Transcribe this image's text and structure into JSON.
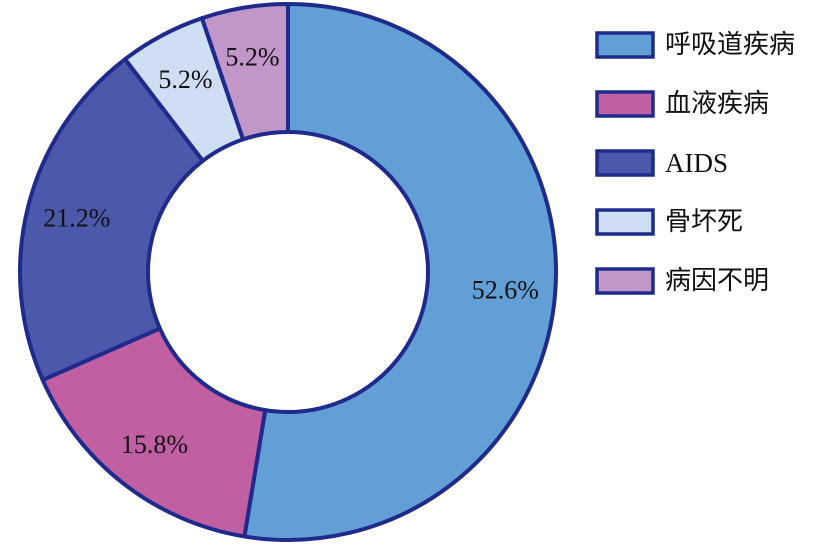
{
  "chart_data": {
    "type": "pie",
    "donut": true,
    "categories": [
      "呼吸道疾病",
      "血液疾病",
      "AIDS",
      "骨坏死",
      "病因不明"
    ],
    "values": [
      52.6,
      15.8,
      21.2,
      5.2,
      5.2
    ],
    "value_labels": [
      "52.6%",
      "15.8%",
      "21.2%",
      "5.2%",
      "5.2%"
    ],
    "colors": [
      "#639fd7",
      "#c05fa2",
      "#4c59aa",
      "#cfdef2",
      "#c196c8"
    ],
    "outline_color": "#1f2b8c",
    "start_angle_deg": 0,
    "direction": "clockwise",
    "legend_position": "right"
  }
}
